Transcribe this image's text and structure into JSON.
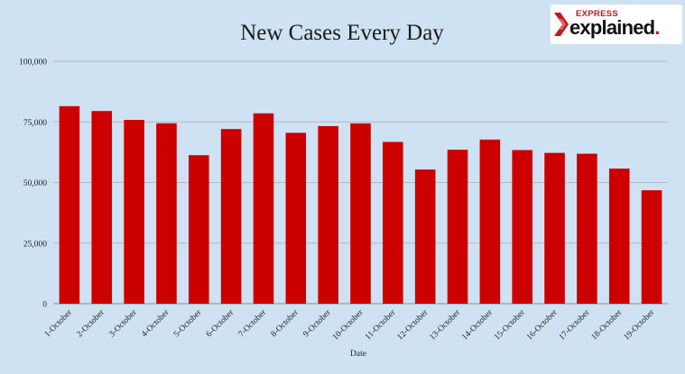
{
  "chart_data": {
    "type": "bar",
    "title": "New Cases Every Day",
    "xlabel": "Date",
    "ylabel": "",
    "categories": [
      "1-October",
      "2-October",
      "3-October",
      "4-October",
      "5-October",
      "6-October",
      "7-October",
      "8-October",
      "9-October",
      "10-October",
      "11-October",
      "12-October",
      "13-October",
      "14-October",
      "15-October",
      "16-October",
      "17-October",
      "18-October",
      "19-October"
    ],
    "values": [
      81484,
      79476,
      75829,
      74442,
      61267,
      72049,
      78524,
      70496,
      73272,
      74383,
      66732,
      55342,
      63509,
      67708,
      63371,
      62212,
      61871,
      55722,
      46790
    ],
    "ylim": [
      0,
      100000
    ],
    "yticks": [
      "0",
      "25,000",
      "50,000",
      "75,000",
      "100,000"
    ],
    "ytick_values": [
      0,
      25000,
      50000,
      75000,
      100000
    ],
    "grid": true,
    "bar_color": "#cc0000"
  },
  "logo": {
    "brand_top": "EXPRESS",
    "brand_main": "explained",
    "brand_dot": ".",
    "accent_color": "#c4161c"
  }
}
